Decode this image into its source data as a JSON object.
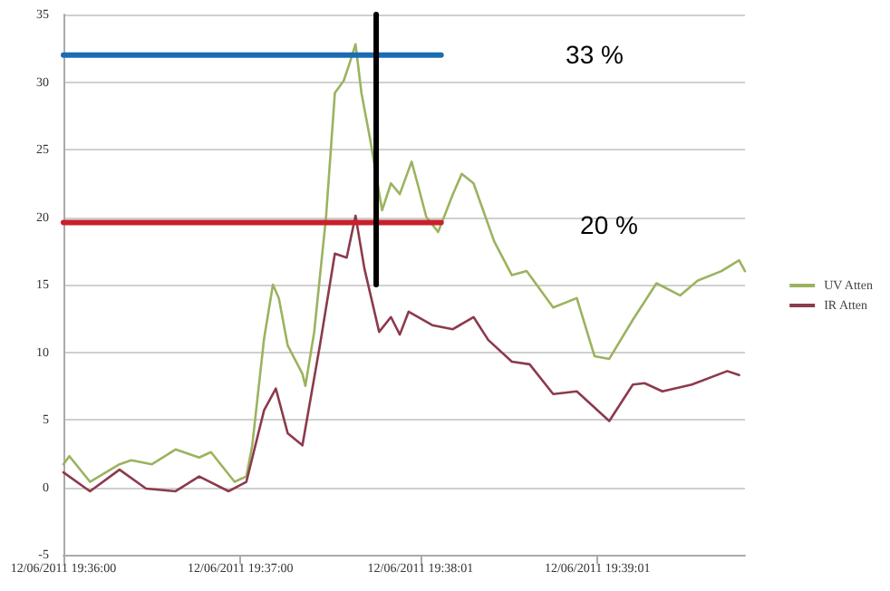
{
  "chart_data": {
    "type": "line",
    "xlim": [
      "2011-06-12T19:36:00",
      "2011-06-12T19:39:51"
    ],
    "xticks": [
      {
        "value": "2011-06-12T19:36:00",
        "label": "12/06/2011 19:36:00"
      },
      {
        "value": "2011-06-12T19:37:00",
        "label": "12/06/2011 19:37:00"
      },
      {
        "value": "2011-06-12T19:38:01",
        "label": "12/06/2011 19:38:01"
      },
      {
        "value": "2011-06-12T19:39:01",
        "label": "12/06/2011 19:39:01"
      }
    ],
    "ylim": [
      -5,
      35
    ],
    "yticks": [
      -5,
      0,
      5,
      10,
      15,
      20,
      25,
      30,
      35
    ],
    "grid": "y",
    "legend": "right",
    "marker": "none",
    "line_style": "solid",
    "series": [
      {
        "name": "UV Atten",
        "color": "#9bb35f",
        "x": [
          "2011-06-12T19:36:00",
          "2011-06-12T19:36:02",
          "2011-06-12T19:36:09",
          "2011-06-12T19:36:19",
          "2011-06-12T19:36:23",
          "2011-06-12T19:36:30",
          "2011-06-12T19:36:38",
          "2011-06-12T19:36:46",
          "2011-06-12T19:36:50",
          "2011-06-12T19:36:58",
          "2011-06-12T19:37:02",
          "2011-06-12T19:37:04",
          "2011-06-12T19:37:08",
          "2011-06-12T19:37:11",
          "2011-06-12T19:37:13",
          "2011-06-12T19:37:16",
          "2011-06-12T19:37:21",
          "2011-06-12T19:37:22",
          "2011-06-12T19:37:25",
          "2011-06-12T19:37:29",
          "2011-06-12T19:37:32",
          "2011-06-12T19:37:35",
          "2011-06-12T19:37:37",
          "2011-06-12T19:37:39",
          "2011-06-12T19:37:41",
          "2011-06-12T19:37:44",
          "2011-06-12T19:37:48",
          "2011-06-12T19:37:51",
          "2011-06-12T19:37:54",
          "2011-06-12T19:37:58",
          "2011-06-12T19:38:00",
          "2011-06-12T19:38:03",
          "2011-06-12T19:38:07",
          "2011-06-12T19:38:12",
          "2011-06-12T19:38:15",
          "2011-06-12T19:38:19",
          "2011-06-12T19:38:26",
          "2011-06-12T19:38:32",
          "2011-06-12T19:38:37",
          "2011-06-12T19:38:46",
          "2011-06-12T19:38:54",
          "2011-06-12T19:39:00",
          "2011-06-12T19:39:05",
          "2011-06-12T19:39:13",
          "2011-06-12T19:39:21",
          "2011-06-12T19:39:29",
          "2011-06-12T19:39:35",
          "2011-06-12T19:39:43",
          "2011-06-12T19:39:49",
          "2011-06-12T19:39:51"
        ],
        "values": [
          1.7,
          2.3,
          0.4,
          1.7,
          2.0,
          1.7,
          2.8,
          2.2,
          2.6,
          0.4,
          0.8,
          3.1,
          11,
          15,
          14,
          10.5,
          8.4,
          7.5,
          11.5,
          20,
          29.2,
          30.1,
          31.4,
          32.8,
          29.2,
          25.7,
          20.5,
          22.5,
          21.7,
          24.1,
          22.5,
          20,
          18.9,
          21.7,
          23.2,
          22.5,
          18.2,
          15.7,
          16,
          13.3,
          14,
          9.7,
          9.5,
          12.4,
          15.1,
          14.2,
          15.3,
          16,
          16.8,
          16
        ]
      },
      {
        "name": "IR Atten",
        "color": "#8c3a4c",
        "x": [
          "2011-06-12T19:36:00",
          "2011-06-12T19:36:09",
          "2011-06-12T19:36:19",
          "2011-06-12T19:36:28",
          "2011-06-12T19:36:38",
          "2011-06-12T19:36:46",
          "2011-06-12T19:36:56",
          "2011-06-12T19:37:02",
          "2011-06-12T19:37:08",
          "2011-06-12T19:37:12",
          "2011-06-12T19:37:16",
          "2011-06-12T19:37:21",
          "2011-06-12T19:37:27",
          "2011-06-12T19:37:32",
          "2011-06-12T19:37:36",
          "2011-06-12T19:37:39",
          "2011-06-12T19:37:42",
          "2011-06-12T19:37:47",
          "2011-06-12T19:37:51",
          "2011-06-12T19:37:54",
          "2011-06-12T19:37:57",
          "2011-06-12T19:38:05",
          "2011-06-12T19:38:12",
          "2011-06-12T19:38:19",
          "2011-06-12T19:38:24",
          "2011-06-12T19:38:32",
          "2011-06-12T19:38:38",
          "2011-06-12T19:38:46",
          "2011-06-12T19:38:54",
          "2011-06-12T19:39:05",
          "2011-06-12T19:39:13",
          "2011-06-12T19:39:17",
          "2011-06-12T19:39:23",
          "2011-06-12T19:39:33",
          "2011-06-12T19:39:45",
          "2011-06-12T19:39:49"
        ],
        "values": [
          1.1,
          -0.3,
          1.3,
          -0.1,
          -0.3,
          0.8,
          -0.3,
          0.4,
          5.7,
          7.3,
          4,
          3.1,
          10.6,
          17.3,
          17,
          20.1,
          16.2,
          11.5,
          12.6,
          11.3,
          13,
          12,
          11.7,
          12.6,
          10.9,
          9.3,
          9.1,
          6.9,
          7.1,
          4.9,
          7.6,
          7.7,
          7.1,
          7.6,
          8.6,
          8.3
        ]
      },
      {
        "color": "#1a6db3",
        "x": [
          "2011-06-12T19:36:00",
          "2011-06-12T19:38:08"
        ],
        "values": [
          32,
          32
        ]
      },
      {
        "color": "#c8202c",
        "x": [
          "2011-06-12T19:36:00",
          "2011-06-12T19:38:08"
        ],
        "values": [
          19.6,
          19.6
        ]
      },
      {
        "color": "#000000",
        "x": [
          "2011-06-12T19:37:46",
          "2011-06-12T19:37:46"
        ],
        "values": [
          35,
          15
        ]
      }
    ],
    "annotations": [
      "33 %",
      "20 %"
    ]
  }
}
